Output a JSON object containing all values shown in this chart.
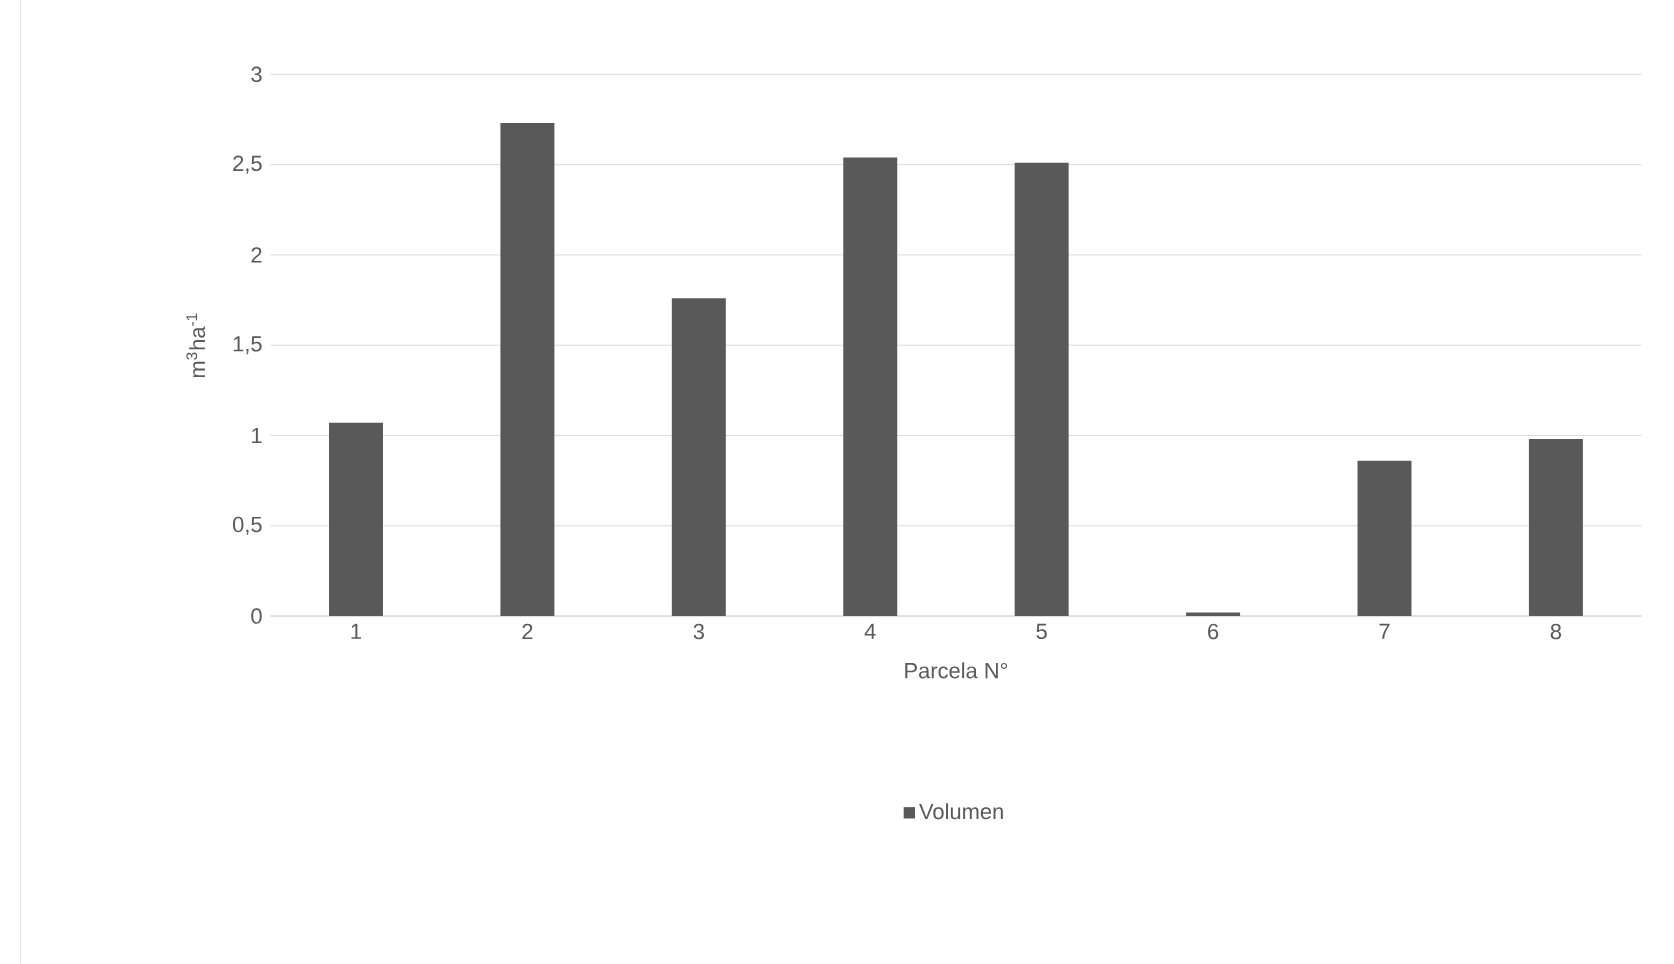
{
  "chart_data": {
    "type": "bar",
    "xlabel": "Parcela N°",
    "ylabel": "m$^{3}$ha$^{-1}$",
    "categories": [
      "1",
      "2",
      "3",
      "4",
      "5",
      "6",
      "7",
      "8"
    ],
    "series": [
      {
        "name": "Volumen",
        "color": "#595959",
        "values": [
          1.07,
          2.73,
          1.76,
          2.54,
          2.51,
          0.02,
          0.86,
          0.98
        ]
      }
    ],
    "ylim": [
      0,
      3
    ],
    "yticks": [
      0,
      {
        "value": 0.5,
        "label": "0,5"
      },
      1,
      {
        "value": 1.5,
        "label": "1,5"
      },
      2,
      {
        "value": 2.5,
        "label": "2,5"
      },
      3
    ],
    "grid": "y",
    "legend": "bottom"
  }
}
